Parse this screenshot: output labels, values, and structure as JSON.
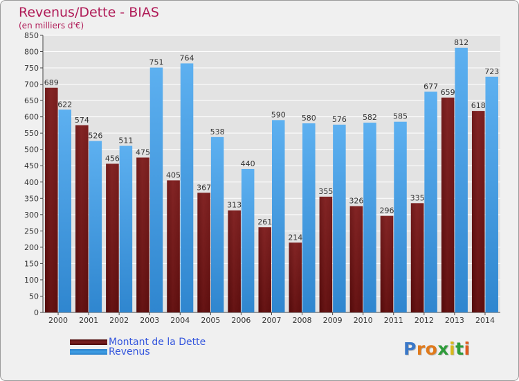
{
  "title": "Revenus/Dette - BIAS",
  "subtitle": "(en milliers d'€)",
  "legend": {
    "debt_label": "Montant de la Dette",
    "revenue_label": "Revenus"
  },
  "logo": {
    "text": "Proxiti"
  },
  "colors": {
    "debt": "#7d2020",
    "revenue": "#3f9fe6",
    "title": "#b01c58",
    "legend_text": "#3355dd",
    "grid": "#ffffff",
    "plot_bg": "#e3e3e3"
  },
  "chart_data": {
    "type": "bar",
    "title": "Revenus/Dette - BIAS",
    "subtitle": "(en milliers d'€)",
    "categories": [
      "2000",
      "2001",
      "2002",
      "2003",
      "2004",
      "2005",
      "2006",
      "2007",
      "2008",
      "2009",
      "2010",
      "2011",
      "2012",
      "2013",
      "2014"
    ],
    "series": [
      {
        "name": "Montant de la Dette",
        "values": [
          689,
          574,
          456,
          475,
          405,
          367,
          313,
          261,
          214,
          355,
          326,
          296,
          335,
          659,
          618
        ]
      },
      {
        "name": "Revenus",
        "values": [
          622,
          526,
          511,
          751,
          764,
          538,
          440,
          590,
          580,
          576,
          582,
          585,
          677,
          812,
          723
        ]
      }
    ],
    "ylim": [
      0,
      850
    ],
    "yticks": [
      0,
      50,
      100,
      150,
      200,
      250,
      300,
      350,
      400,
      450,
      500,
      550,
      600,
      650,
      700,
      750,
      800,
      850
    ],
    "grid": true,
    "legend_position": "bottom-left"
  }
}
